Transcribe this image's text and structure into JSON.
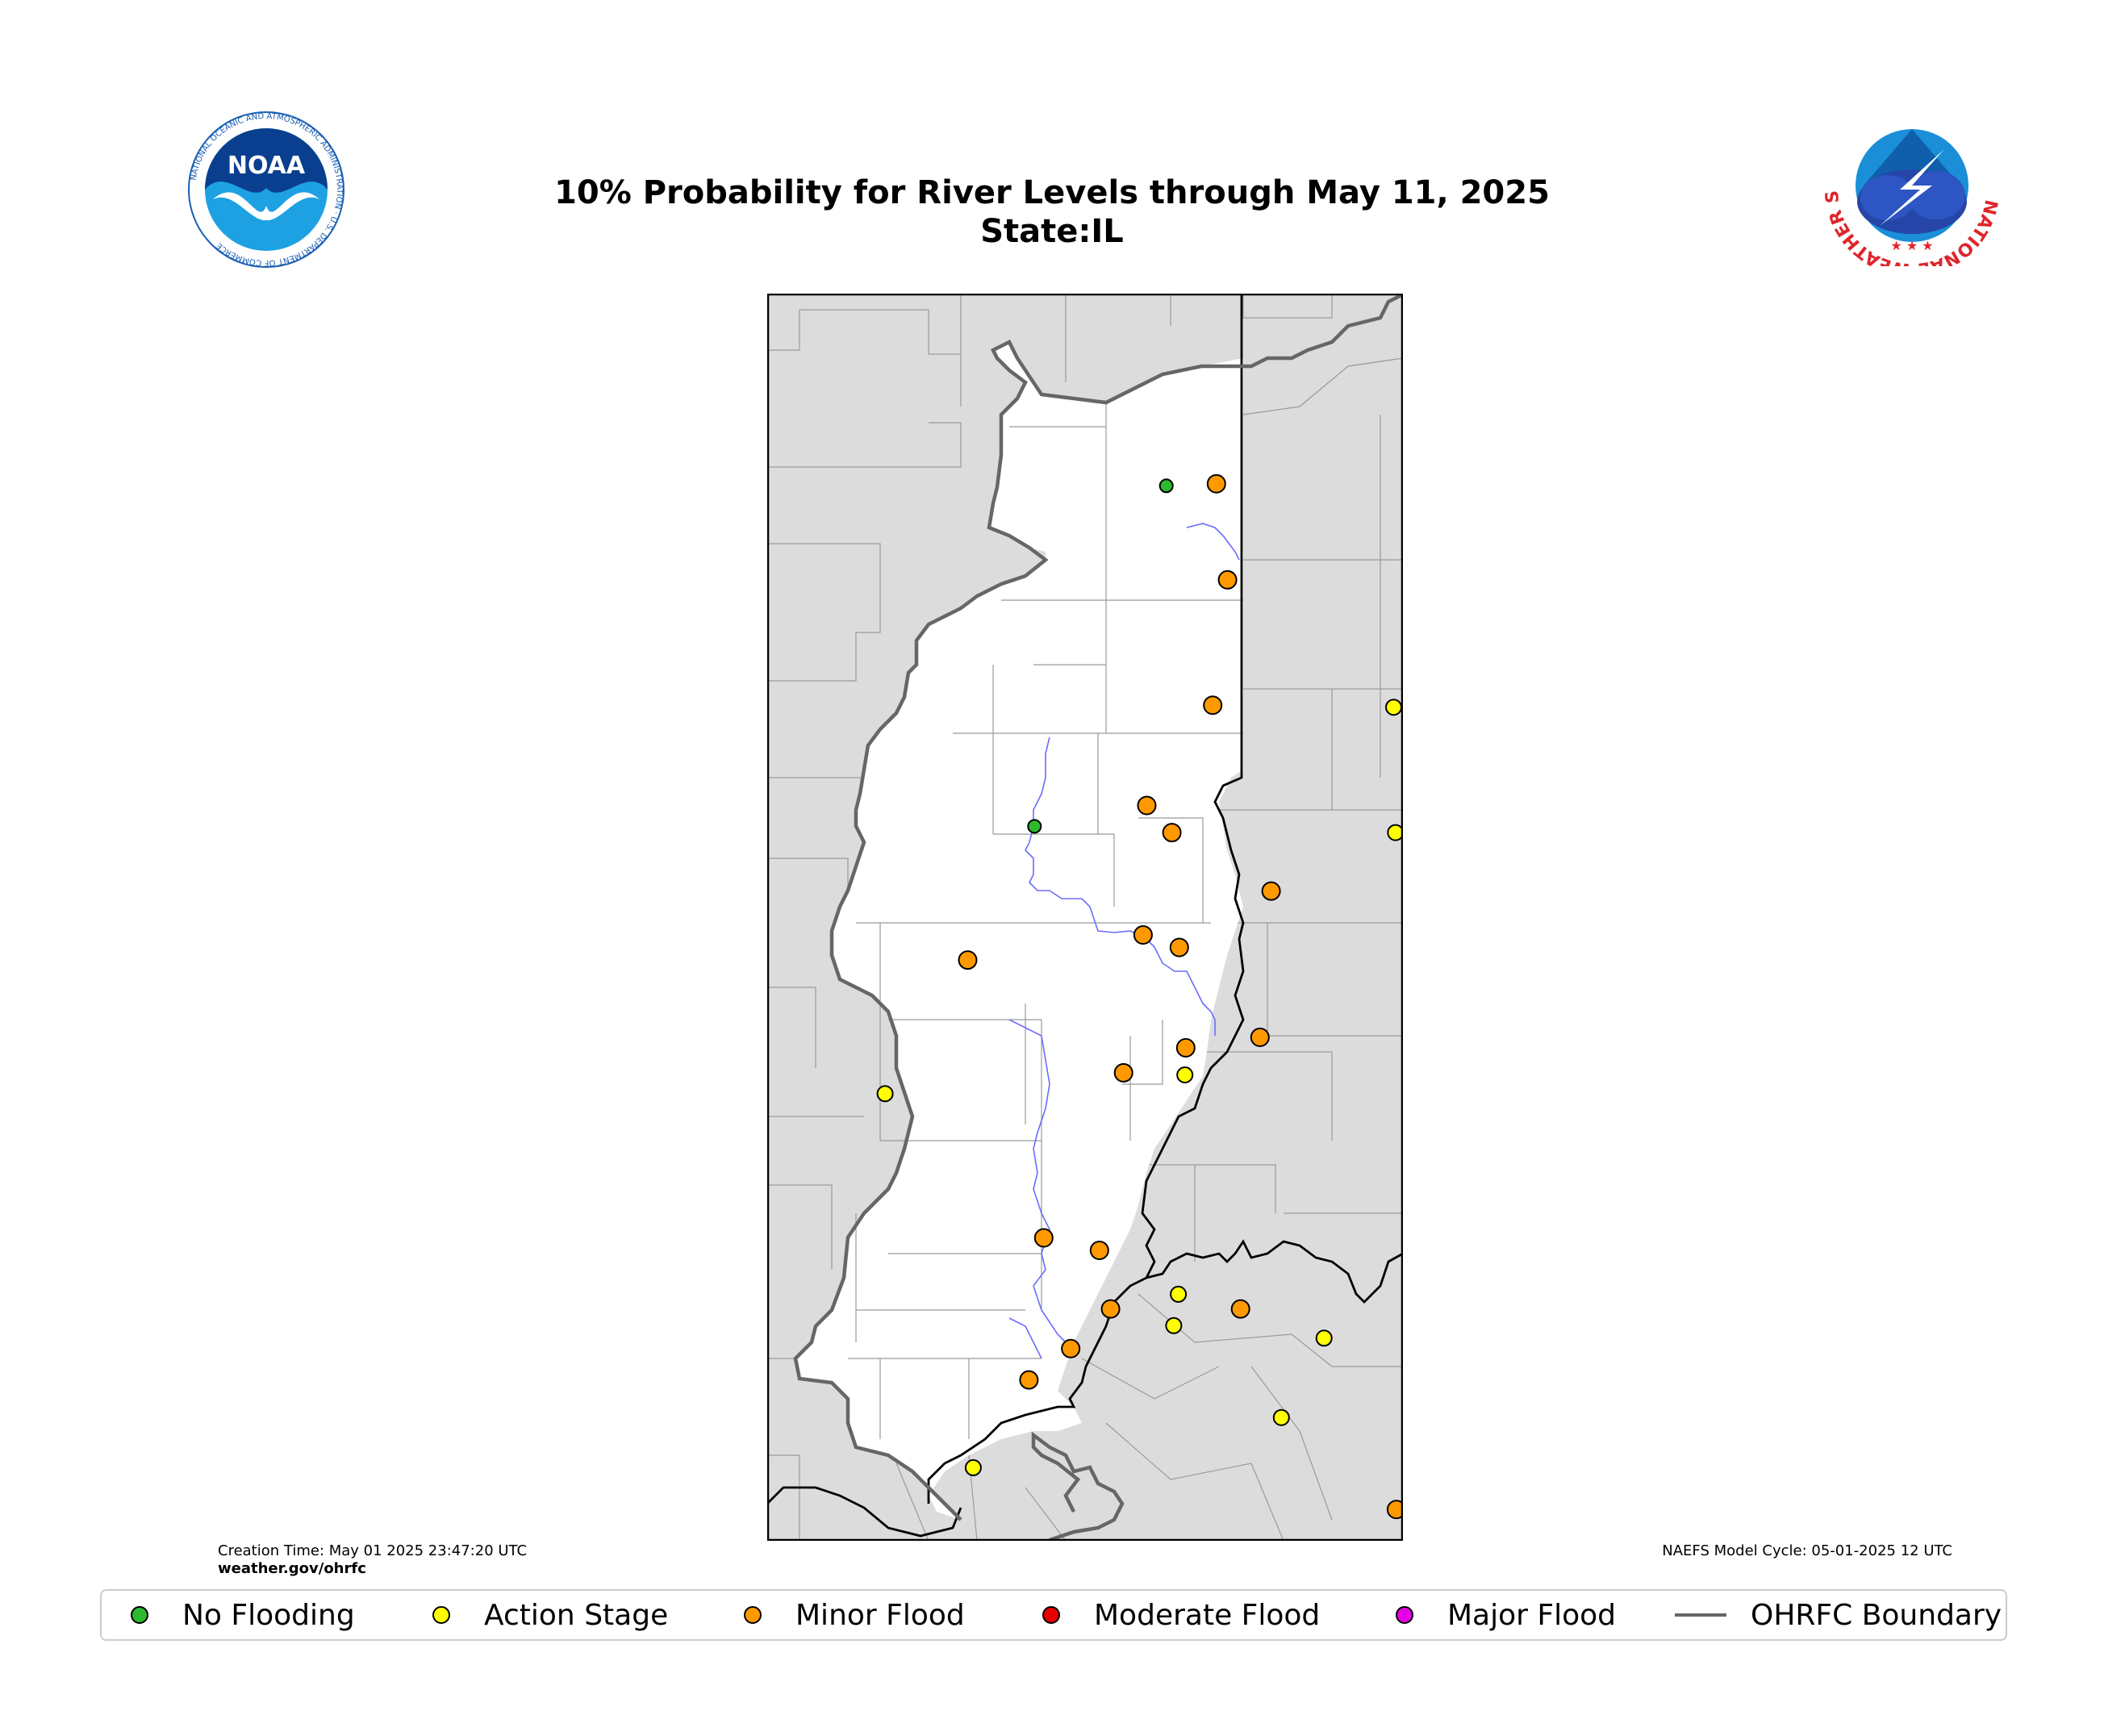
{
  "title": {
    "line1": "10% Probability for River Levels through May 11, 2025",
    "line2": "State:IL"
  },
  "footer": {
    "creation_time": "Creation Time: May 01 2025 23:47:20 UTC",
    "website": "weather.gov/ohrfc",
    "model_cycle": "NAEFS Model Cycle: 05-01-2025 12 UTC"
  },
  "logos": {
    "left": {
      "icon": "noaa-logo",
      "text": "NOAA",
      "ring_text": "NATIONAL OCEANIC AND ATMOSPHERIC ADMINISTRATION · U.S. DEPARTMENT OF COMMERCE"
    },
    "right": {
      "icon": "nws-logo",
      "ring_text": "NATIONAL WEATHER SERVICE"
    }
  },
  "legend": [
    {
      "label": "No Flooding",
      "color": "#2db92d",
      "kind": "dot"
    },
    {
      "label": "Action Stage",
      "color": "#ffff00",
      "kind": "dot"
    },
    {
      "label": "Minor Flood",
      "color": "#ff9900",
      "kind": "dot"
    },
    {
      "label": "Moderate Flood",
      "color": "#e60000",
      "kind": "dot"
    },
    {
      "label": "Major Flood",
      "color": "#e600e6",
      "kind": "dot"
    },
    {
      "label": "OHRFC Boundary",
      "color": "#666666",
      "kind": "line"
    }
  ],
  "colors": {
    "outside": "#dcdcdc",
    "inside": "#ffffff",
    "county_lines": "#999999",
    "rivers": "#6b6bff",
    "state_lines": "#000000",
    "boundary": "#666666"
  },
  "gauges": [
    {
      "lon": -87.55,
      "lat": 41.63,
      "status": "No Flooding"
    },
    {
      "lon": -88.97,
      "lat": 40.0,
      "status": "No Flooding"
    },
    {
      "lon": -87.01,
      "lat": 41.64,
      "status": "Minor Flood"
    },
    {
      "lon": -86.89,
      "lat": 41.18,
      "status": "Minor Flood"
    },
    {
      "lon": -87.05,
      "lat": 40.58,
      "status": "Minor Flood"
    },
    {
      "lon": -87.76,
      "lat": 40.1,
      "status": "Minor Flood"
    },
    {
      "lon": -87.49,
      "lat": 39.97,
      "status": "Minor Flood"
    },
    {
      "lon": -86.42,
      "lat": 39.69,
      "status": "Minor Flood"
    },
    {
      "lon": -87.8,
      "lat": 39.48,
      "status": "Minor Flood"
    },
    {
      "lon": -87.41,
      "lat": 39.42,
      "status": "Minor Flood"
    },
    {
      "lon": -89.69,
      "lat": 39.36,
      "status": "Minor Flood"
    },
    {
      "lon": -86.54,
      "lat": 38.99,
      "status": "Minor Flood"
    },
    {
      "lon": -87.34,
      "lat": 38.94,
      "status": "Minor Flood"
    },
    {
      "lon": -88.01,
      "lat": 38.82,
      "status": "Minor Flood"
    },
    {
      "lon": -88.27,
      "lat": 37.97,
      "status": "Minor Flood"
    },
    {
      "lon": -88.87,
      "lat": 38.03,
      "status": "Minor Flood"
    },
    {
      "lon": -88.15,
      "lat": 37.69,
      "status": "Minor Flood"
    },
    {
      "lon": -86.75,
      "lat": 37.69,
      "status": "Minor Flood"
    },
    {
      "lon": -88.58,
      "lat": 37.5,
      "status": "Minor Flood"
    },
    {
      "lon": -89.03,
      "lat": 37.35,
      "status": "Minor Flood"
    },
    {
      "lon": -85.1,
      "lat": 40.57,
      "status": "Action Stage"
    },
    {
      "lon": -85.08,
      "lat": 39.97,
      "status": "Action Stage"
    },
    {
      "lon": -90.58,
      "lat": 38.72,
      "status": "Action Stage"
    },
    {
      "lon": -87.35,
      "lat": 38.81,
      "status": "Action Stage"
    },
    {
      "lon": -87.42,
      "lat": 37.76,
      "status": "Action Stage"
    },
    {
      "lon": -87.47,
      "lat": 37.61,
      "status": "Action Stage"
    },
    {
      "lon": -85.85,
      "lat": 37.55,
      "status": "Action Stage"
    },
    {
      "lon": -86.31,
      "lat": 37.17,
      "status": "Action Stage"
    },
    {
      "lon": -89.63,
      "lat": 36.93,
      "status": "Action Stage"
    },
    {
      "lon": -85.07,
      "lat": 36.73,
      "status": "Minor Flood"
    }
  ]
}
